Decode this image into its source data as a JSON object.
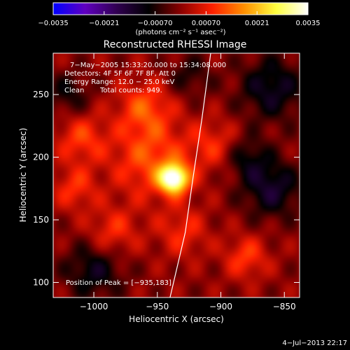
{
  "chart_data": {
    "type": "heatmap",
    "title": "Reconstructed RHESSI Image",
    "xlabel": "Heliocentric X (arcsec)",
    "ylabel": "Heliocentric Y (arcsec)",
    "xlim": [
      -1032,
      -838
    ],
    "ylim": [
      88,
      283
    ],
    "x_ticks": [
      -1000,
      -950,
      -900,
      -850
    ],
    "x_tick_labels": [
      "−1000",
      "−950",
      "−900",
      "−850"
    ],
    "y_ticks": [
      100,
      150,
      200,
      250
    ],
    "y_tick_labels": [
      "100",
      "150",
      "200",
      "250"
    ],
    "colorbar": {
      "range": [
        -0.0035,
        0.0035
      ],
      "ticks": [
        -0.0035,
        -0.0021,
        -0.0007,
        0.0007,
        0.0021,
        0.0035
      ],
      "tick_labels": [
        "−0.0035",
        "−0.0021",
        "−0.00070",
        "0.00070",
        "0.0021",
        "0.0035"
      ],
      "units": "(photons cm⁻² s⁻¹ asec⁻²)",
      "colors": [
        "#0000ff",
        "#6000c0",
        "#300050",
        "#000000",
        "#8a0000",
        "#ff2000",
        "#ff9000",
        "#ffff40",
        "#ffffff"
      ]
    },
    "annotations": [
      "7−May−2005 15:33:20.000 to 15:34:08.000",
      "Detectors: 4F 5F 6F 7F 8F, Att 0",
      "Energy Range: 12.0 − 25.0 keV",
      "Clean",
      "Total counts: 949."
    ],
    "peak_label": "Position of Peak = [−935,183]",
    "peak": {
      "x": -935,
      "y": 183,
      "value": 0.0035
    },
    "sources": [
      {
        "x": -937,
        "y": 183,
        "amp": 0.0035,
        "sigma": 8
      },
      {
        "x": -955,
        "y": 198,
        "amp": 0.0012,
        "sigma": 22
      },
      {
        "x": -960,
        "y": 240,
        "amp": 0.0011,
        "sigma": 15
      },
      {
        "x": -1010,
        "y": 215,
        "amp": 0.001,
        "sigma": 14
      },
      {
        "x": -1015,
        "y": 175,
        "amp": 0.0009,
        "sigma": 12
      },
      {
        "x": -905,
        "y": 210,
        "amp": 0.0008,
        "sigma": 14
      },
      {
        "x": -880,
        "y": 120,
        "amp": 0.001,
        "sigma": 12
      },
      {
        "x": -985,
        "y": 140,
        "amp": 0.0009,
        "sigma": 14
      },
      {
        "x": -930,
        "y": 140,
        "amp": 0.0008,
        "sigma": 14
      },
      {
        "x": -860,
        "y": 255,
        "amp": -0.0012,
        "sigma": 18
      },
      {
        "x": -860,
        "y": 175,
        "amp": -0.0013,
        "sigma": 16
      },
      {
        "x": -1000,
        "y": 110,
        "amp": -0.0011,
        "sigma": 16
      },
      {
        "x": -1020,
        "y": 250,
        "amp": -0.0008,
        "sigma": 12
      },
      {
        "x": -880,
        "y": 200,
        "amp": -0.0009,
        "sigma": 12
      },
      {
        "x": -925,
        "y": 265,
        "amp": -0.0007,
        "sigma": 12
      }
    ],
    "limb": [
      [
        -940,
        88
      ],
      [
        -928,
        140
      ],
      [
        -922,
        183
      ],
      [
        -915,
        230
      ],
      [
        -908,
        283
      ]
    ],
    "grid": false
  },
  "timestamp": "4−Jul−2013 22:17"
}
